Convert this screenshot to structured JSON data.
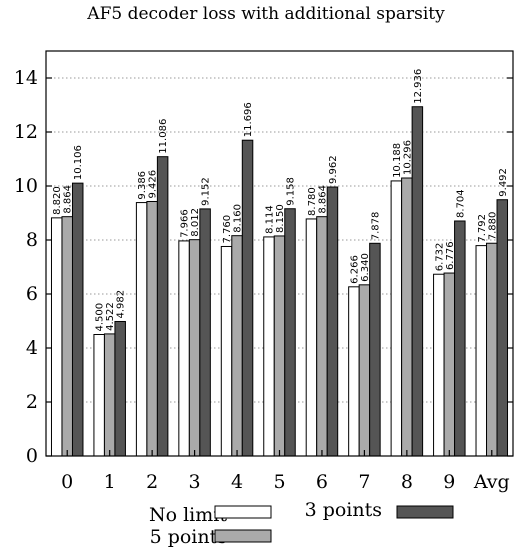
{
  "chart_data": {
    "type": "bar",
    "title": "AF5 decoder loss with additional sparsity",
    "xlabel": "",
    "ylabel": "",
    "ylim": [
      0,
      15
    ],
    "yticks": [
      0,
      2,
      4,
      6,
      8,
      10,
      12,
      14
    ],
    "grid": true,
    "legend_position": "bottom",
    "categories": [
      "0",
      "1",
      "2",
      "3",
      "4",
      "5",
      "6",
      "7",
      "8",
      "9",
      "Avg"
    ],
    "series": [
      {
        "name": "No limit",
        "color": "#ffffff",
        "values": [
          8.82,
          4.5,
          9.386,
          7.966,
          7.76,
          8.114,
          8.78,
          6.266,
          10.188,
          6.732,
          7.792
        ],
        "labels": [
          "8.820",
          "4.500",
          "9.386",
          "7.966",
          "7.760",
          "8.114",
          "8.780",
          "6.266",
          "10.188",
          "6.732",
          "7.792"
        ]
      },
      {
        "name": "5 points",
        "color": "#aaaaaa",
        "values": [
          8.864,
          4.522,
          9.426,
          8.012,
          8.16,
          8.15,
          8.864,
          6.34,
          10.296,
          6.776,
          7.88
        ],
        "labels": [
          "8.864",
          "4.522",
          "9.426",
          "8.012",
          "8.160",
          "8.150",
          "8.864",
          "6.340",
          "10.296",
          "6.776",
          "7.880"
        ]
      },
      {
        "name": "3 points",
        "color": "#555555",
        "values": [
          10.106,
          4.982,
          11.086,
          9.152,
          11.696,
          9.158,
          9.962,
          7.878,
          12.936,
          8.704,
          9.492
        ],
        "labels": [
          "10.106",
          "4.982",
          "11.086",
          "9.152",
          "11.696",
          "9.158",
          "9.962",
          "7.878",
          "12.936",
          "8.704",
          "9.492"
        ]
      }
    ]
  }
}
